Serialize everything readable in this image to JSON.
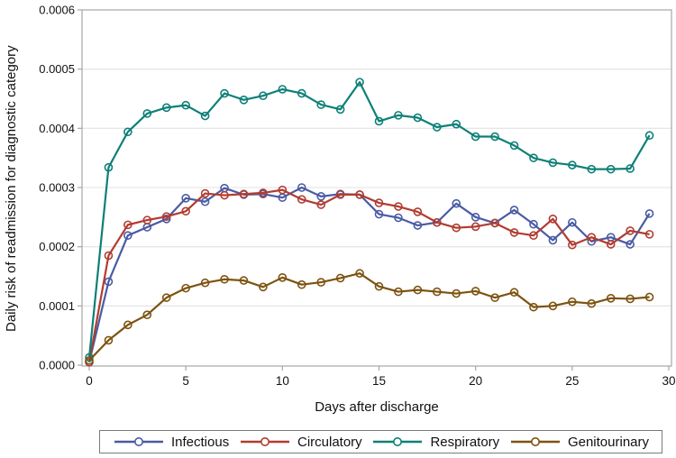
{
  "chart_data": {
    "type": "line",
    "title": "",
    "xlabel": "Days after discharge",
    "ylabel": "Daily risk of readmission for diagnostic category",
    "x": [
      0,
      1,
      2,
      3,
      4,
      5,
      6,
      7,
      8,
      9,
      10,
      11,
      12,
      13,
      14,
      15,
      16,
      17,
      18,
      19,
      20,
      21,
      22,
      23,
      24,
      25,
      26,
      27,
      28,
      29
    ],
    "xlim": [
      0,
      30
    ],
    "ylim": [
      0,
      0.0006
    ],
    "x_ticks": [
      0,
      5,
      10,
      15,
      20,
      25,
      30
    ],
    "y_tick_labels": [
      "0.0000",
      "0.0001",
      "0.0002",
      "0.0003",
      "0.0004",
      "0.0005",
      "0.0006"
    ],
    "y_tick_values": [
      0,
      0.0001,
      0.0002,
      0.0003,
      0.0004,
      0.0005,
      0.0006
    ],
    "grid": "horizontal",
    "legend_position": "bottom",
    "marker": "open-circle",
    "series": [
      {
        "name": "Infectious",
        "color": "#4A5BA4",
        "values": [
          5e-06,
          0.000141,
          0.000219,
          0.000233,
          0.000247,
          0.000282,
          0.000276,
          0.000299,
          0.000288,
          0.000289,
          0.000283,
          0.0003,
          0.000285,
          0.000289,
          0.000288,
          0.000255,
          0.000249,
          0.000236,
          0.000241,
          0.000273,
          0.00025,
          0.00024,
          0.000262,
          0.000238,
          0.000211,
          0.000241,
          0.000209,
          0.000216,
          0.000204,
          0.000256
        ]
      },
      {
        "name": "Circulatory",
        "color": "#B13C31",
        "values": [
          5e-06,
          0.000185,
          0.000237,
          0.000245,
          0.000251,
          0.00026,
          0.00029,
          0.000287,
          0.000289,
          0.000291,
          0.000296,
          0.00028,
          0.000271,
          0.000288,
          0.000288,
          0.000274,
          0.000268,
          0.000259,
          0.000241,
          0.000232,
          0.000234,
          0.00024,
          0.000224,
          0.000219,
          0.000247,
          0.000203,
          0.000216,
          0.000204,
          0.000227,
          0.000221
        ]
      },
      {
        "name": "Respiratory",
        "color": "#0D8077",
        "values": [
          1.3e-05,
          0.000334,
          0.000394,
          0.000425,
          0.000435,
          0.000439,
          0.000421,
          0.000459,
          0.000448,
          0.000455,
          0.000466,
          0.000459,
          0.00044,
          0.000432,
          0.000478,
          0.000412,
          0.000422,
          0.000418,
          0.000402,
          0.000407,
          0.000386,
          0.000386,
          0.000371,
          0.00035,
          0.000342,
          0.000338,
          0.000331,
          0.000331,
          0.000332,
          0.000388
        ]
      },
      {
        "name": "Genitourinary",
        "color": "#7D5310",
        "values": [
          8e-06,
          4.2e-05,
          6.8e-05,
          8.5e-05,
          0.000114,
          0.00013,
          0.000139,
          0.000145,
          0.000143,
          0.000132,
          0.000148,
          0.000136,
          0.00014,
          0.000147,
          0.000155,
          0.000133,
          0.000124,
          0.000127,
          0.000124,
          0.000121,
          0.000125,
          0.000114,
          0.000123,
          9.8e-05,
          0.0001,
          0.000107,
          0.000104,
          0.000113,
          0.000112,
          0.000115
        ]
      }
    ]
  },
  "colors": {
    "background": "#ffffff",
    "grid": "#e6e6e6",
    "axis": "#a6a6a6",
    "text": "#111111",
    "legend_border": "#7a7a7a"
  }
}
